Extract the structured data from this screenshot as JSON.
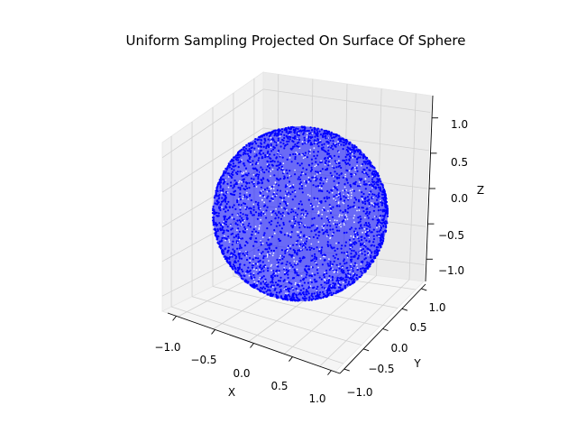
{
  "chart_data": {
    "type": "scatter",
    "dimensions": 3,
    "title": "Uniform Sampling Projected On Surface Of Sphere",
    "xlabel": "X",
    "ylabel": "Y",
    "zlabel": "Z",
    "xlim": [
      -1.1,
      1.1
    ],
    "ylim": [
      -1.1,
      1.1
    ],
    "zlim": [
      -1.1,
      1.1
    ],
    "xticks": [
      "−1.0",
      "−0.5",
      "0.0",
      "0.5",
      "1.0"
    ],
    "yticks": [
      "−1.0",
      "−0.5",
      "0.0",
      "0.5",
      "1.0"
    ],
    "zticks": [
      "−1.0",
      "−0.5",
      "0.0",
      "0.5",
      "1.0"
    ],
    "grid": true,
    "series": [
      {
        "shape": "unit sphere surface",
        "radius": 1.0,
        "center": [
          0,
          0,
          0
        ],
        "color": "#0000ff"
      }
    ]
  }
}
